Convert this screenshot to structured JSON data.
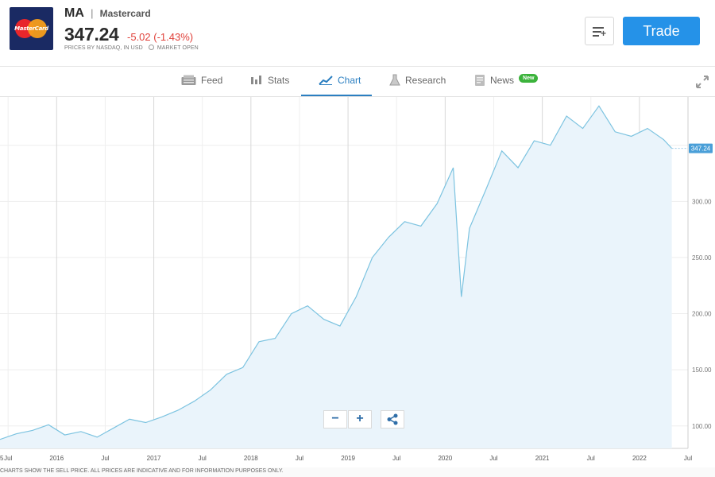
{
  "header": {
    "logo_label": "MasterCard",
    "ticker": "MA",
    "separator": "|",
    "company": "Mastercard",
    "price": "347.24",
    "change": "-5.02 (-1.43%)",
    "prices_by": "PRICES BY NASDAQ, IN USD",
    "market_status": "MARKET OPEN",
    "trade_label": "Trade",
    "colors": {
      "accent": "#2592e8",
      "negative": "#e0413a",
      "logo_bg": "#1a2a63"
    }
  },
  "tabs": [
    {
      "label": "Feed",
      "icon": "feed-icon"
    },
    {
      "label": "Stats",
      "icon": "stats-icon"
    },
    {
      "label": "Chart",
      "icon": "chart-icon",
      "active": true
    },
    {
      "label": "Research",
      "icon": "research-flask-icon"
    },
    {
      "label": "News",
      "icon": "news-icon",
      "badge": "New"
    }
  ],
  "chart_data": {
    "type": "area",
    "current_price_label": "347.24",
    "ylim": [
      80,
      393
    ],
    "y_ticks": [
      100,
      150,
      200,
      250,
      300
    ],
    "y_tick_labels": [
      "100.00",
      "150.00",
      "200.00",
      "250.00",
      "300.00"
    ],
    "x_tick_labels": [
      "5",
      "Jul",
      "2016",
      "Jul",
      "2017",
      "Jul",
      "2018",
      "Jul",
      "2019",
      "Jul",
      "2020",
      "Jul",
      "2021",
      "Jul",
      "2022",
      "Jul"
    ],
    "x_range": [
      "2015-06",
      "2022-07"
    ],
    "series": [
      {
        "x": [
          "2015-06",
          "2015-08",
          "2015-10",
          "2015-12",
          "2016-02",
          "2016-04",
          "2016-06",
          "2016-08",
          "2016-10",
          "2016-12",
          "2017-02",
          "2017-04",
          "2017-06",
          "2017-08",
          "2017-10",
          "2017-12",
          "2018-02",
          "2018-04",
          "2018-06",
          "2018-08",
          "2018-10",
          "2018-12",
          "2019-02",
          "2019-04",
          "2019-06",
          "2019-08",
          "2019-10",
          "2019-12",
          "2020-02",
          "2020-03",
          "2020-04",
          "2020-06",
          "2020-08",
          "2020-10",
          "2020-12",
          "2021-02",
          "2021-04",
          "2021-06",
          "2021-08",
          "2021-10",
          "2021-12",
          "2022-02",
          "2022-04",
          "2022-05"
        ],
        "values": [
          88,
          93,
          96,
          101,
          92,
          95,
          90,
          98,
          106,
          103,
          108,
          114,
          122,
          132,
          146,
          152,
          175,
          178,
          200,
          207,
          195,
          189,
          215,
          250,
          268,
          282,
          278,
          298,
          330,
          215,
          276,
          310,
          345,
          330,
          354,
          350,
          376,
          365,
          385,
          362,
          358,
          365,
          355,
          347.24
        ]
      }
    ],
    "grid": true,
    "colors": {
      "line": "#7cc3e0",
      "fill": "#eaf4fb",
      "label_bg": "#4a9fd8"
    }
  },
  "controls": {
    "zoom_out": "−",
    "zoom_in": "+",
    "share_icon": "share-icon"
  },
  "footer": {
    "note": "CHARTS SHOW THE SELL PRICE. ALL PRICES ARE INDICATIVE AND FOR INFORMATION PURPOSES ONLY."
  }
}
